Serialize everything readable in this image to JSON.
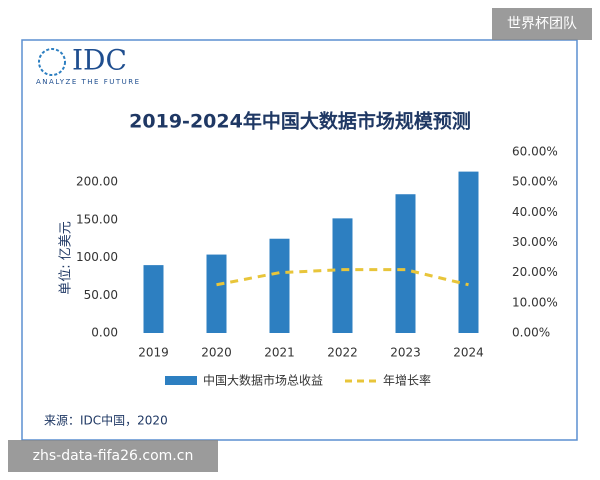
{
  "watermark": "世界杯团队",
  "footer_url": "zhs-data-fifa26.com.cn",
  "logo": {
    "name": "IDC",
    "tagline": "ANALYZE THE FUTURE"
  },
  "source": "来源：IDC中国，2020",
  "chart_data": {
    "type": "bar",
    "title": "2019-2024年中国大数据市场规模预测",
    "y_label": "单位: 亿美元",
    "categories": [
      "2019",
      "2020",
      "2021",
      "2022",
      "2023",
      "2024"
    ],
    "series": [
      {
        "name": "中国大数据市场总收益",
        "type": "bar",
        "color": "#2d7fc1",
        "values": [
          90,
          104,
          125,
          152,
          184,
          214
        ]
      },
      {
        "name": "年增长率",
        "type": "line",
        "axis": "y2",
        "color": "#e8c53a",
        "values": [
          null,
          16,
          20,
          21,
          21,
          16
        ]
      }
    ],
    "ylim": [
      0,
      240
    ],
    "yticks": [
      {
        "value": 0,
        "label": "0.00"
      },
      {
        "value": 50,
        "label": "50.00"
      },
      {
        "value": 100,
        "label": "100.00"
      },
      {
        "value": 150,
        "label": "150.00"
      },
      {
        "value": 200,
        "label": "200.00"
      }
    ],
    "y2lim": [
      0,
      60
    ],
    "y2ticks": [
      {
        "value": 0,
        "label": "0.00%"
      },
      {
        "value": 10,
        "label": "10.00%"
      },
      {
        "value": 20,
        "label": "20.00%"
      },
      {
        "value": 30,
        "label": "30.00%"
      },
      {
        "value": 40,
        "label": "40.00%"
      },
      {
        "value": 50,
        "label": "50.00%"
      },
      {
        "value": 60,
        "label": "60.00%"
      }
    ],
    "grid": false
  }
}
